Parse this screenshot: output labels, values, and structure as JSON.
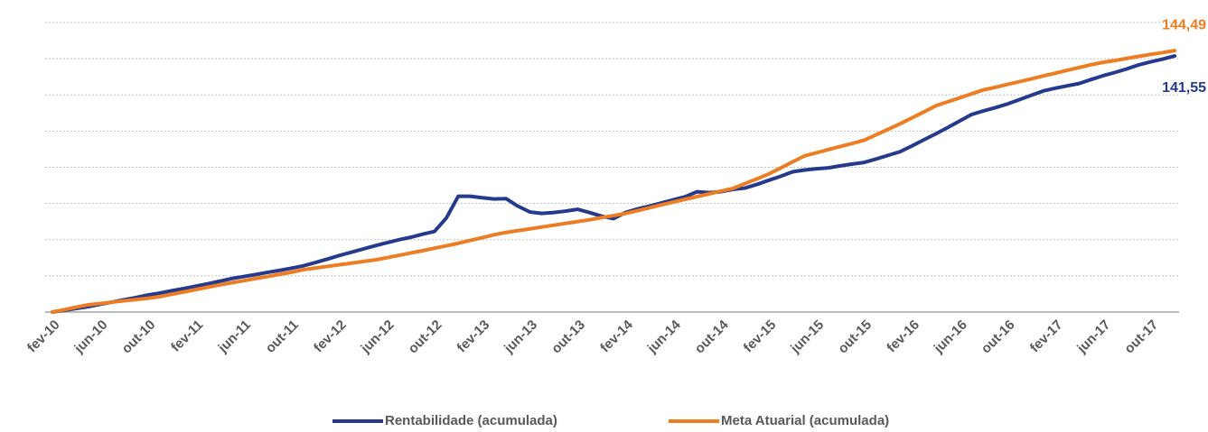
{
  "chart_data": {
    "type": "line",
    "categories": [
      "fev-10",
      null,
      null,
      null,
      "jun-10",
      null,
      null,
      null,
      "out-10",
      null,
      null,
      null,
      "fev-11",
      null,
      null,
      null,
      "jun-11",
      null,
      null,
      null,
      "out-11",
      null,
      null,
      null,
      "fev-12",
      null,
      null,
      null,
      "jun-12",
      null,
      null,
      null,
      "out-12",
      null,
      null,
      null,
      "fev-13",
      null,
      null,
      null,
      "jun-13",
      null,
      null,
      null,
      "out-13",
      null,
      null,
      null,
      "fev-14",
      null,
      null,
      null,
      "jun-14",
      null,
      null,
      null,
      "out-14",
      null,
      null,
      null,
      "fev-15",
      null,
      null,
      null,
      "jun-15",
      null,
      null,
      null,
      "out-15",
      null,
      null,
      null,
      "fev-16",
      null,
      null,
      null,
      "jun-16",
      null,
      null,
      null,
      "out-16",
      null,
      null,
      null,
      "fev-17",
      null,
      null,
      null,
      "jun-17",
      null,
      null,
      null,
      "out-17",
      null,
      null
    ],
    "series": [
      {
        "name": "Rentabilidade (acumulada)",
        "color": "#253a8c",
        "values": [
          0,
          1,
          2,
          3,
          4.3,
          5.5,
          6.8,
          8,
          9.4,
          10.5,
          11.8,
          13,
          14.3,
          15.6,
          17,
          18.5,
          19.6,
          20.7,
          21.9,
          23,
          24.2,
          25.5,
          27.3,
          29.2,
          31.2,
          33,
          34.8,
          36.6,
          38.3,
          39.9,
          41.3,
          43,
          44.5,
          52,
          64,
          64,
          63.2,
          62.5,
          62.7,
          58.5,
          55.3,
          54.5,
          55,
          55.8,
          56.8,
          55,
          53,
          51.6,
          55,
          57,
          58.5,
          60.3,
          62,
          63.7,
          66.5,
          66,
          66.5,
          67.8,
          68.5,
          70.5,
          72.8,
          75,
          77.5,
          78.5,
          79.2,
          79.7,
          80.8,
          81.8,
          82.7,
          84.6,
          86.6,
          88.6,
          91.8,
          95.2,
          98.5,
          102,
          105.6,
          109.2,
          111.2,
          113,
          115,
          117.4,
          119.8,
          122.2,
          123.7,
          125,
          126.3,
          128.5,
          130.6,
          132.4,
          134.4,
          136.6,
          138.3,
          139.8,
          141.55
        ],
        "value_labels": [
          null,
          null,
          null,
          null,
          null,
          null,
          null,
          null,
          null,
          null,
          null,
          null,
          null,
          null,
          null,
          null,
          null,
          null,
          null,
          null,
          null,
          null,
          null,
          null,
          null,
          null,
          null,
          null,
          null,
          null,
          null,
          null,
          null,
          null,
          null,
          null,
          null,
          null,
          null,
          null,
          null,
          null,
          null,
          null,
          null,
          null,
          null,
          null,
          null,
          null,
          null,
          null,
          null,
          null,
          null,
          null,
          null,
          null,
          null,
          null,
          null,
          null,
          null,
          null,
          null,
          null,
          null,
          null,
          null,
          null,
          null,
          null,
          null,
          null,
          null,
          null,
          null,
          null,
          null,
          null,
          null,
          null,
          null,
          null,
          null,
          null,
          null,
          null,
          null,
          null,
          null,
          null,
          null,
          null,
          "141,55"
        ]
      },
      {
        "name": "Meta Atuarial (acumulada)",
        "color": "#ed7d22",
        "values": [
          0,
          1.3,
          2.7,
          4,
          4.7,
          5.5,
          6.2,
          6.9,
          7.6,
          8.5,
          9.8,
          11.1,
          12.4,
          13.7,
          15,
          16.2,
          17.3,
          18.5,
          19.6,
          20.8,
          22,
          23.4,
          24.3,
          25.2,
          26.1,
          27,
          27.9,
          28.8,
          30,
          31.3,
          32.6,
          33.9,
          35.3,
          36.6,
          38,
          39.6,
          41.1,
          42.7,
          44,
          45,
          46,
          47,
          48,
          49,
          50,
          51,
          52.2,
          53.3,
          54.5,
          56,
          57.6,
          59.2,
          60.8,
          62.3,
          63.8,
          65.3,
          66.8,
          68.3,
          71,
          73.6,
          76.3,
          79.6,
          83,
          86.3,
          88,
          89.8,
          91.5,
          93.2,
          95,
          98,
          101,
          104,
          107.3,
          110.6,
          114,
          116.2,
          118.4,
          120.6,
          122.8,
          124.2,
          125.8,
          127.3,
          128.9,
          130.5,
          132,
          133.6,
          135.1,
          136.7,
          138,
          139,
          140.2,
          141.3,
          142.4,
          143.4,
          144.49
        ],
        "value_labels": [
          null,
          null,
          null,
          null,
          null,
          null,
          null,
          null,
          null,
          null,
          null,
          null,
          null,
          null,
          null,
          null,
          null,
          null,
          null,
          null,
          null,
          null,
          null,
          null,
          null,
          null,
          null,
          null,
          null,
          null,
          null,
          null,
          null,
          null,
          null,
          null,
          null,
          null,
          null,
          null,
          null,
          null,
          null,
          null,
          null,
          null,
          null,
          null,
          null,
          null,
          null,
          null,
          null,
          null,
          null,
          null,
          null,
          null,
          null,
          null,
          null,
          null,
          null,
          null,
          null,
          null,
          null,
          null,
          null,
          null,
          null,
          null,
          null,
          null,
          null,
          null,
          null,
          null,
          null,
          null,
          null,
          null,
          null,
          null,
          null,
          null,
          null,
          null,
          null,
          null,
          null,
          null,
          null,
          null,
          "144,49"
        ]
      }
    ],
    "ylim": [
      0,
      160
    ],
    "yticks": [
      0,
      20,
      40,
      60,
      80,
      100,
      120,
      140,
      160
    ],
    "grid": true,
    "legend": "bottom"
  }
}
